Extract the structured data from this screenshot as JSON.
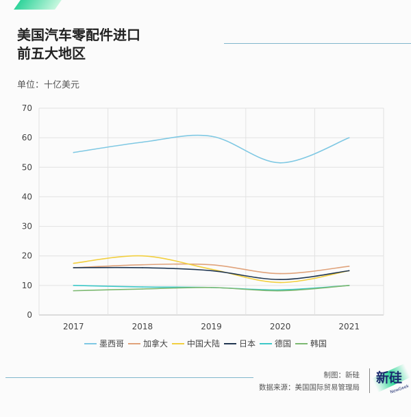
{
  "header": {
    "title_line1": "美国汽车零配件进口",
    "title_line2": "前五大地区",
    "unit": "单位：十亿美元"
  },
  "footer": {
    "credit": "制图：新硅",
    "source": "数据来源：美国国际贸易管理局",
    "logo_text": "新硅",
    "logo_sub": "NewGeek"
  },
  "chart_data": {
    "type": "line",
    "title": "美国汽车零配件进口前五大地区",
    "ylabel": "单位：十亿美元",
    "xlabel": "",
    "categories": [
      "2017",
      "2018",
      "2019",
      "2020",
      "2021"
    ],
    "ylim": [
      0,
      70
    ],
    "yticks": [
      "0",
      "10",
      "20",
      "30",
      "40",
      "50",
      "60",
      "70"
    ],
    "grid": true,
    "legend": "bottom",
    "series": [
      {
        "name": "墨西哥",
        "color": "#7ec8e3",
        "values": [
          55,
          58.5,
          60.5,
          51.5,
          60
        ]
      },
      {
        "name": "加拿大",
        "color": "#e0a27a",
        "values": [
          16,
          17,
          17,
          14,
          16.5
        ]
      },
      {
        "name": "中国大陆",
        "color": "#f2cf3e",
        "values": [
          17.5,
          20,
          15.5,
          11,
          15
        ]
      },
      {
        "name": "日本",
        "color": "#1f3550",
        "values": [
          16,
          16,
          15,
          12,
          15
        ]
      },
      {
        "name": "德国",
        "color": "#3cc8c8",
        "values": [
          10,
          9.5,
          9.3,
          8.5,
          10
        ]
      },
      {
        "name": "韩国",
        "color": "#7bb870",
        "values": [
          8.2,
          8.8,
          9.3,
          8.2,
          10
        ]
      }
    ]
  }
}
